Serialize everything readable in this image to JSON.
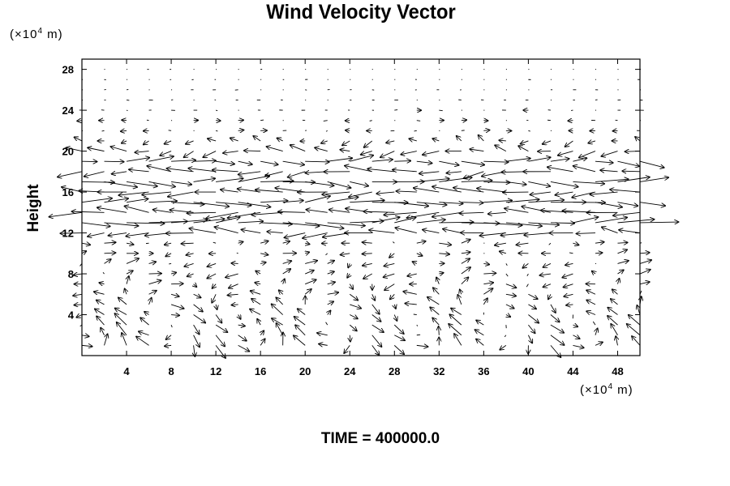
{
  "chart_data": {
    "type": "vector-field",
    "title": "Wind Velocity Vector",
    "ylabel": "Height",
    "x_unit": {
      "prefix": "(×10",
      "exp": "4",
      "suffix": " m)"
    },
    "y_unit": {
      "prefix": "(×10",
      "exp": "4",
      "suffix": " m)"
    },
    "xlim": [
      0,
      50
    ],
    "ylim": [
      0,
      29
    ],
    "xticks": [
      4,
      8,
      12,
      16,
      20,
      24,
      28,
      32,
      36,
      40,
      44,
      48
    ],
    "yticks": [
      4,
      8,
      12,
      16,
      20,
      24,
      28
    ],
    "grid": false,
    "vectors": {
      "x_start": 0,
      "x_step": 2,
      "x_count": 26,
      "y_start": 1,
      "y_step": 1,
      "y_count": 28,
      "jet_rows": [
        {
          "y": 12,
          "u": -10
        },
        {
          "y": 13,
          "u": 14
        },
        {
          "y": 14,
          "u": -12
        },
        {
          "y": 15,
          "u": 13
        },
        {
          "y": 16,
          "u": -11
        },
        {
          "y": 17,
          "u": 12
        },
        {
          "y": 18,
          "u": -10
        },
        {
          "y": 19,
          "u": 9
        },
        {
          "y": 20,
          "u": -6
        },
        {
          "y": 21,
          "u": -3
        }
      ]
    },
    "time_label": "TIME = 400000.0"
  }
}
